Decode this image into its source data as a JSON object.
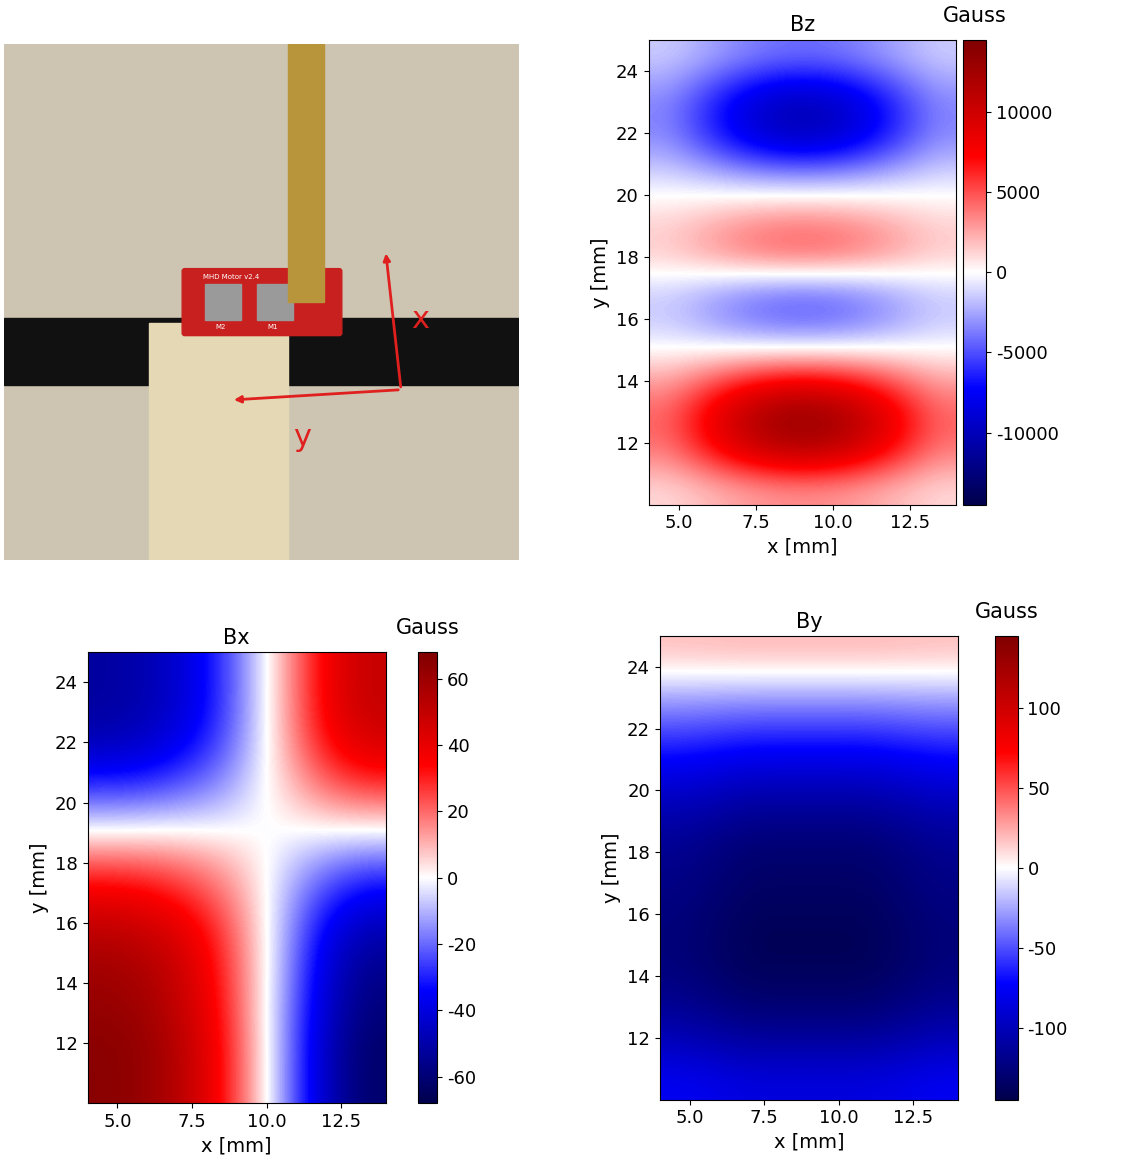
{
  "photo": {
    "axis_labels": [
      "x",
      "y"
    ],
    "board_texts": [
      "MHD Motor v2.4",
      "M2",
      "M1"
    ]
  },
  "chart_data": [
    {
      "type": "heatmap",
      "title": "Bz",
      "xlabel": "x [mm]",
      "ylabel": "y [mm]",
      "xlim": [
        4,
        14
      ],
      "ylim": [
        10,
        25
      ],
      "xticks": [
        {
          "value": 5,
          "label": "5.0"
        },
        {
          "value": 7.5,
          "label": "7.5"
        },
        {
          "value": 10,
          "label": "10.0"
        },
        {
          "value": 12.5,
          "label": "12.5"
        }
      ],
      "yticks": [
        12,
        14,
        16,
        18,
        20,
        22,
        24
      ],
      "cells": [
        [
          1050,
          1800,
          2550,
          3000,
          3000,
          2550,
          1800,
          1050
        ],
        [
          4200,
          7200,
          10200,
          12000,
          12000,
          10200,
          7200,
          4200
        ],
        [
          4550,
          7800,
          11050,
          13000,
          13000,
          11050,
          7800,
          4550
        ],
        [
          1750,
          3000,
          4250,
          5000,
          5000,
          4250,
          3000,
          1750
        ],
        [
          -1400,
          -2400,
          -3400,
          -4000,
          -4000,
          -3400,
          -2400,
          -1400
        ],
        [
          -1575,
          -2700,
          -3825,
          -4500,
          -4500,
          -3825,
          -2700,
          -1575
        ],
        [
          1750,
          3000,
          4250,
          5000,
          5000,
          4250,
          3000,
          1750
        ],
        [
          1050,
          1800,
          2550,
          3000,
          3000,
          2550,
          1800,
          1050
        ],
        [
          -1050,
          -1800,
          -2550,
          -3000,
          -3000,
          -2550,
          -1800,
          -1050
        ],
        [
          -3500,
          -6000,
          -8500,
          -10000,
          -10000,
          -8500,
          -6000,
          -3500
        ],
        [
          -3500,
          -6000,
          -8500,
          -10000,
          -10000,
          -8500,
          -6000,
          -3500
        ],
        [
          -1400,
          -2400,
          -3400,
          -4000,
          -4000,
          -3400,
          -2400,
          -1400
        ]
      ],
      "colorbar": {
        "label": "Gauss",
        "range": [
          -14500,
          14500
        ],
        "ticks": [
          -10000,
          -5000,
          0,
          5000,
          10000
        ]
      }
    },
    {
      "type": "heatmap",
      "title": "Bx",
      "xlabel": "x [mm]",
      "ylabel": "y [mm]",
      "xlim": [
        4,
        14
      ],
      "ylim": [
        10,
        25
      ],
      "xticks": [
        {
          "value": 5,
          "label": "5.0"
        },
        {
          "value": 7.5,
          "label": "7.5"
        },
        {
          "value": 10,
          "label": "10.0"
        },
        {
          "value": 12.5,
          "label": "12.5"
        }
      ],
      "yticks": [
        12,
        14,
        16,
        18,
        20,
        22,
        24
      ],
      "cells": [
        [
          65,
          62,
          52,
          36,
          10,
          -23,
          -49,
          -62
        ],
        [
          65,
          62,
          52,
          36,
          10,
          -23,
          -49,
          -62
        ],
        [
          62,
          59,
          49,
          34,
          9,
          -22,
          -46,
          -59
        ],
        [
          59,
          56,
          47,
          32,
          9,
          -20,
          -44,
          -56
        ],
        [
          52,
          49,
          42,
          29,
          8,
          -18,
          -39,
          -49
        ],
        [
          39,
          37,
          31,
          21,
          6,
          -14,
          -29,
          -37
        ],
        [
          20,
          19,
          16,
          11,
          3,
          -7,
          -15,
          -19
        ],
        [
          -7,
          -6,
          -5,
          -4,
          -1,
          2,
          5,
          6
        ],
        [
          -29,
          -28,
          -23,
          -16,
          -4,
          10,
          22,
          28
        ],
        [
          -46,
          -43,
          -36,
          -25,
          -7,
          16,
          34,
          43
        ],
        [
          -52,
          -49,
          -42,
          -29,
          -8,
          18,
          39,
          49
        ],
        [
          -52,
          -49,
          -42,
          -29,
          -8,
          18,
          39,
          49
        ]
      ],
      "colorbar": {
        "label": "Gauss",
        "range": [
          -68,
          68
        ],
        "ticks": [
          -60,
          -40,
          -20,
          0,
          20,
          40,
          60
        ]
      }
    },
    {
      "type": "heatmap",
      "title": "By",
      "xlabel": "x [mm]",
      "ylabel": "y [mm]",
      "xlim": [
        4,
        14
      ],
      "ylim": [
        10,
        25
      ],
      "xticks": [
        {
          "value": 5,
          "label": "5.0"
        },
        {
          "value": 7.5,
          "label": "7.5"
        },
        {
          "value": 10,
          "label": "10.0"
        },
        {
          "value": 12.5,
          "label": "12.5"
        }
      ],
      "yticks": [
        12,
        14,
        16,
        18,
        20,
        22,
        24
      ],
      "cells": [
        [
          -77,
          -81,
          -85,
          -85,
          -85,
          -85,
          -81,
          -77
        ],
        [
          -99,
          -105,
          -110,
          -110,
          -110,
          -110,
          -105,
          -99
        ],
        [
          -117,
          -124,
          -130,
          -130,
          -130,
          -130,
          -124,
          -117
        ],
        [
          -126,
          -133,
          -140,
          -140,
          -140,
          -140,
          -133,
          -126
        ],
        [
          -126,
          -133,
          -140,
          -140,
          -140,
          -140,
          -133,
          -126
        ],
        [
          -122,
          -128,
          -135,
          -135,
          -135,
          -135,
          -128,
          -122
        ],
        [
          -117,
          -124,
          -130,
          -130,
          -130,
          -130,
          -124,
          -117
        ],
        [
          -104,
          -109,
          -115,
          -115,
          -115,
          -115,
          -109,
          -104
        ],
        [
          -81,
          -86,
          -90,
          -90,
          -90,
          -90,
          -86,
          -81
        ],
        [
          -54,
          -57,
          -60,
          -60,
          -60,
          -60,
          -57,
          -54
        ],
        [
          -23,
          -24,
          -25,
          -25,
          -25,
          -25,
          -24,
          -23
        ],
        [
          18,
          19,
          20,
          20,
          20,
          20,
          19,
          18
        ]
      ],
      "colorbar": {
        "label": "Gauss",
        "range": [
          -145,
          145
        ],
        "ticks": [
          -100,
          -50,
          0,
          50,
          100
        ]
      }
    }
  ]
}
